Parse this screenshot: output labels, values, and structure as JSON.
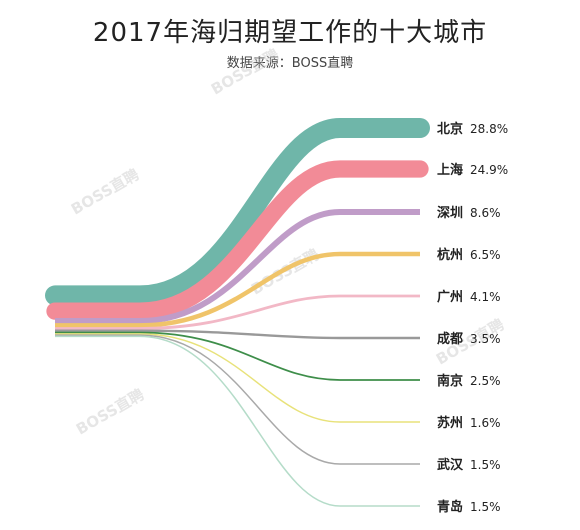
{
  "chart_data": {
    "type": "sankey-flow",
    "title": "2017年海归期望工作的十大城市",
    "subtitle": "数据来源：BOSS直聘",
    "watermark": "BOSS直聘",
    "series": [
      {
        "name": "北京",
        "value": 28.8,
        "label": "28.8%",
        "color": "#6fb6a9"
      },
      {
        "name": "上海",
        "value": 24.9,
        "label": "24.9%",
        "color": "#f28b97"
      },
      {
        "name": "深圳",
        "value": 8.6,
        "label": "8.6%",
        "color": "#c09cc8"
      },
      {
        "name": "杭州",
        "value": 6.5,
        "label": "6.5%",
        "color": "#f0c469"
      },
      {
        "name": "广州",
        "value": 4.1,
        "label": "4.1%",
        "color": "#f2b8c6"
      },
      {
        "name": "成都",
        "value": 3.5,
        "label": "3.5%",
        "color": "#999999"
      },
      {
        "name": "南京",
        "value": 2.5,
        "label": "2.5%",
        "color": "#3e8e4a"
      },
      {
        "name": "苏州",
        "value": 1.6,
        "label": "1.6%",
        "color": "#e8e27a"
      },
      {
        "name": "武汉",
        "value": 1.5,
        "label": "1.5%",
        "color": "#a9a9a9"
      },
      {
        "name": "青岛",
        "value": null,
        "label": "1.5%",
        "color": "#b5dcc9"
      }
    ]
  }
}
